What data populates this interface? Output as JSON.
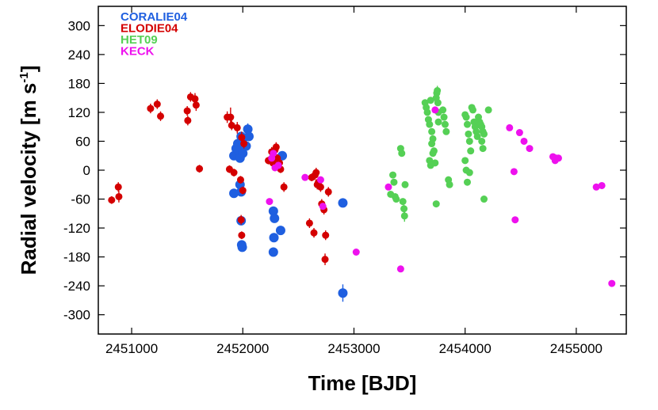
{
  "chart_data": {
    "type": "scatter",
    "xlabel": "Time [BJD]",
    "ylabel_main": "Radial velocity [m s",
    "ylabel_sup": "-1",
    "ylabel_end": "]",
    "xlim": [
      2450700,
      2455450
    ],
    "ylim": [
      -340,
      340
    ],
    "xticks": [
      2451000,
      2452000,
      2453000,
      2454000,
      2455000
    ],
    "yticks": [
      300,
      240,
      180,
      120,
      60,
      0,
      -60,
      -120,
      -180,
      -240,
      -300
    ],
    "grid": false,
    "legend_position": "top-left",
    "series": [
      {
        "name": "CORALIE04",
        "color": "#1f5fe0",
        "marker_size": 6,
        "points": [
          [
            2451920,
            30,
            8
          ],
          [
            2451940,
            45,
            8
          ],
          [
            2451955,
            55,
            8
          ],
          [
            2451965,
            40,
            8
          ],
          [
            2451975,
            25,
            8
          ],
          [
            2451985,
            70,
            8
          ],
          [
            2451995,
            60,
            8
          ],
          [
            2452000,
            35,
            8
          ],
          [
            2452030,
            50,
            8
          ],
          [
            2452045,
            85,
            12
          ],
          [
            2452055,
            70,
            10
          ],
          [
            2451975,
            -30,
            8
          ],
          [
            2451985,
            -45,
            8
          ],
          [
            2451920,
            -48,
            8
          ],
          [
            2451985,
            -105,
            8
          ],
          [
            2451990,
            -155,
            8
          ],
          [
            2451995,
            -160,
            8
          ],
          [
            2452275,
            -85,
            8
          ],
          [
            2452285,
            -100,
            8
          ],
          [
            2452280,
            -140,
            8
          ],
          [
            2452275,
            -170,
            8
          ],
          [
            2452340,
            -125,
            8
          ],
          [
            2452355,
            30,
            8
          ],
          [
            2452900,
            -68,
            8
          ],
          [
            2452900,
            -255,
            18
          ]
        ]
      },
      {
        "name": "ELODIE04",
        "color": "#d40000",
        "marker_size": 4.5,
        "points": [
          [
            2450820,
            -62,
            8
          ],
          [
            2450880,
            -35,
            10
          ],
          [
            2450885,
            -55,
            12
          ],
          [
            2451170,
            128,
            10
          ],
          [
            2451230,
            137,
            10
          ],
          [
            2451260,
            112,
            10
          ],
          [
            2451500,
            123,
            10
          ],
          [
            2451505,
            103,
            10
          ],
          [
            2451530,
            152,
            10
          ],
          [
            2451570,
            148,
            12
          ],
          [
            2451580,
            135,
            12
          ],
          [
            2451610,
            3,
            8
          ],
          [
            2451860,
            110,
            12
          ],
          [
            2451890,
            110,
            20
          ],
          [
            2451900,
            93,
            10
          ],
          [
            2451950,
            88,
            12
          ],
          [
            2451990,
            68,
            12
          ],
          [
            2452010,
            55,
            10
          ],
          [
            2451880,
            2,
            8
          ],
          [
            2451920,
            -5,
            8
          ],
          [
            2451980,
            -20,
            8
          ],
          [
            2452000,
            -42,
            8
          ],
          [
            2451985,
            -103,
            10
          ],
          [
            2451990,
            -135,
            8
          ],
          [
            2452230,
            20,
            8
          ],
          [
            2452260,
            38,
            10
          ],
          [
            2452270,
            15,
            8
          ],
          [
            2452290,
            42,
            10
          ],
          [
            2452300,
            48,
            10
          ],
          [
            2452310,
            25,
            8
          ],
          [
            2452330,
            15,
            8
          ],
          [
            2452340,
            2,
            8
          ],
          [
            2452370,
            -35,
            10
          ],
          [
            2452600,
            -110,
            10
          ],
          [
            2452620,
            -15,
            8
          ],
          [
            2452640,
            -130,
            10
          ],
          [
            2452650,
            -10,
            10
          ],
          [
            2452660,
            -5,
            10
          ],
          [
            2452670,
            -30,
            10
          ],
          [
            2452680,
            -25,
            10
          ],
          [
            2452700,
            -35,
            10
          ],
          [
            2452710,
            -70,
            10
          ],
          [
            2452730,
            -82,
            10
          ],
          [
            2452745,
            -135,
            10
          ],
          [
            2452740,
            -185,
            12
          ],
          [
            2452770,
            -45,
            10
          ]
        ]
      },
      {
        "name": "HET09",
        "color": "#55d055",
        "marker_size": 4.5,
        "points": [
          [
            2453330,
            -50,
            5
          ],
          [
            2453350,
            -10,
            5
          ],
          [
            2453360,
            -25,
            5
          ],
          [
            2453370,
            -55,
            5
          ],
          [
            2453380,
            -60,
            5
          ],
          [
            2453420,
            45,
            5
          ],
          [
            2453430,
            35,
            5
          ],
          [
            2453440,
            -65,
            5
          ],
          [
            2453450,
            -80,
            8
          ],
          [
            2453455,
            -95,
            12
          ],
          [
            2453460,
            -30,
            5
          ],
          [
            2453640,
            140,
            5
          ],
          [
            2453650,
            130,
            5
          ],
          [
            2453660,
            120,
            5
          ],
          [
            2453670,
            105,
            5
          ],
          [
            2453680,
            95,
            5
          ],
          [
            2453690,
            145,
            5
          ],
          [
            2453700,
            80,
            5
          ],
          [
            2453710,
            65,
            5
          ],
          [
            2453720,
            40,
            5
          ],
          [
            2453730,
            15,
            5
          ],
          [
            2453740,
            150,
            5
          ],
          [
            2453745,
            160,
            8
          ],
          [
            2453750,
            165,
            10
          ],
          [
            2453755,
            140,
            5
          ],
          [
            2453760,
            120,
            5
          ],
          [
            2453680,
            20,
            5
          ],
          [
            2453690,
            10,
            5
          ],
          [
            2453700,
            55,
            5
          ],
          [
            2453710,
            35,
            5
          ],
          [
            2453740,
            -70,
            5
          ],
          [
            2453760,
            100,
            5
          ],
          [
            2453800,
            125,
            5
          ],
          [
            2453810,
            110,
            5
          ],
          [
            2453820,
            95,
            5
          ],
          [
            2453830,
            80,
            5
          ],
          [
            2453850,
            -20,
            5
          ],
          [
            2453860,
            -30,
            5
          ],
          [
            2454000,
            115,
            5
          ],
          [
            2454010,
            110,
            5
          ],
          [
            2454020,
            95,
            5
          ],
          [
            2454030,
            75,
            5
          ],
          [
            2454040,
            60,
            5
          ],
          [
            2454050,
            40,
            5
          ],
          [
            2454060,
            130,
            5
          ],
          [
            2454070,
            125,
            5
          ],
          [
            2454080,
            100,
            5
          ],
          [
            2454090,
            90,
            5
          ],
          [
            2454100,
            80,
            5
          ],
          [
            2454110,
            70,
            5
          ],
          [
            2454120,
            110,
            5
          ],
          [
            2454130,
            100,
            5
          ],
          [
            2454140,
            95,
            5
          ],
          [
            2454150,
            90,
            5
          ],
          [
            2454160,
            80,
            5
          ],
          [
            2454170,
            75,
            5
          ],
          [
            2454000,
            20,
            5
          ],
          [
            2454010,
            0,
            5
          ],
          [
            2454020,
            -25,
            5
          ],
          [
            2454040,
            -5,
            5
          ],
          [
            2454150,
            60,
            5
          ],
          [
            2454160,
            45,
            5
          ],
          [
            2454170,
            -60,
            5
          ],
          [
            2454210,
            125,
            5
          ]
        ]
      },
      {
        "name": "KECK",
        "color": "#ee11ee",
        "marker_size": 4.5,
        "points": [
          [
            2452240,
            -65,
            0
          ],
          [
            2452260,
            25,
            0
          ],
          [
            2452275,
            35,
            0
          ],
          [
            2452290,
            5,
            0
          ],
          [
            2452320,
            10,
            0
          ],
          [
            2452560,
            -15,
            0
          ],
          [
            2452700,
            -20,
            0
          ],
          [
            2452720,
            -75,
            0
          ],
          [
            2453020,
            -170,
            0
          ],
          [
            2453310,
            -35,
            0
          ],
          [
            2453420,
            -205,
            0
          ],
          [
            2453730,
            125,
            0
          ],
          [
            2454400,
            88,
            0
          ],
          [
            2454440,
            -3,
            0
          ],
          [
            2454450,
            -103,
            0
          ],
          [
            2454490,
            78,
            0
          ],
          [
            2454530,
            60,
            0
          ],
          [
            2454580,
            45,
            0
          ],
          [
            2454790,
            28,
            0
          ],
          [
            2454810,
            20,
            0
          ],
          [
            2454820,
            25,
            0
          ],
          [
            2454840,
            25,
            0
          ],
          [
            2455180,
            -35,
            0
          ],
          [
            2455230,
            -32,
            0
          ],
          [
            2455320,
            -235,
            0
          ]
        ]
      }
    ]
  }
}
